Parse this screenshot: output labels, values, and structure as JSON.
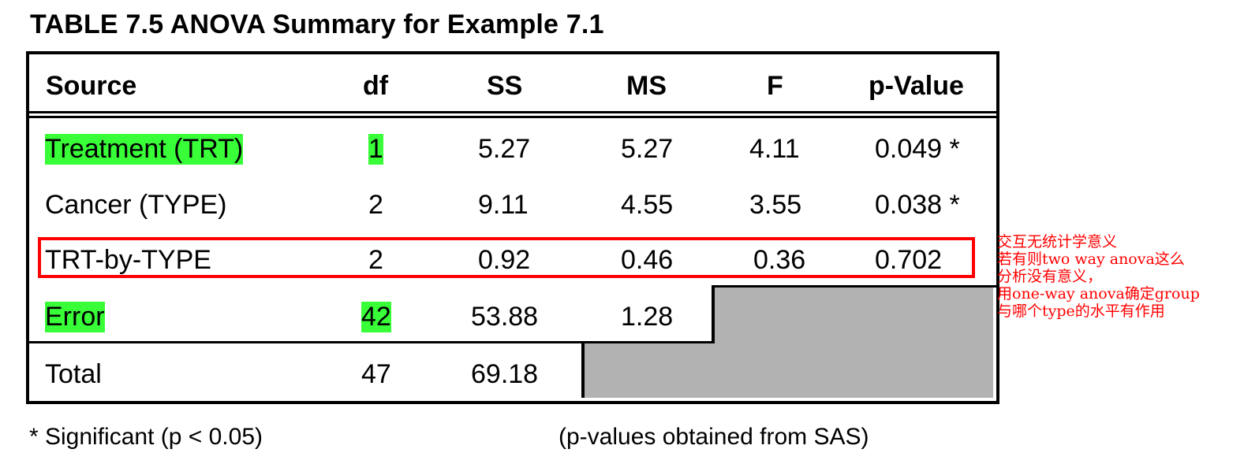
{
  "title": "TABLE 7.5  ANOVA Summary for Example 7.1",
  "columns": [
    "Source",
    "df",
    "SS",
    "MS",
    "F",
    "p-Value"
  ],
  "rows": [
    {
      "source": "Treatment (TRT)",
      "df": "1",
      "ss": "5.27",
      "ms": "5.27",
      "f": "4.11",
      "p": "0.049 *"
    },
    {
      "source": "Cancer (TYPE)",
      "df": "2",
      "ss": "9.11",
      "ms": "4.55",
      "f": "3.55",
      "p": "0.038 *"
    },
    {
      "source": "TRT-by-TYPE",
      "df": "2",
      "ss": "0.92",
      "ms": "0.46",
      "f": "0.36",
      "p": "0.702"
    },
    {
      "source": "Error",
      "df": "42",
      "ss": "53.88",
      "ms": "1.28"
    },
    {
      "source": "Total",
      "df": "47",
      "ss": "69.18"
    }
  ],
  "highlights": [
    "Treatment (TRT)",
    "1",
    "Error",
    "42"
  ],
  "annotation": {
    "lines": [
      "交互无统计学意义",
      "若有则two way anova这么",
      "分析没有意义，",
      "用one-way anova确定group",
      "与哪个type的水平有作用"
    ],
    "color": "#ff0000"
  },
  "footer": {
    "left": "* Significant (p < 0.05)",
    "right": "(p-values obtained from SAS)"
  },
  "colors": {
    "highlight": "#39ff39",
    "shade": "#b2b2b2",
    "box": "#ff0000"
  }
}
